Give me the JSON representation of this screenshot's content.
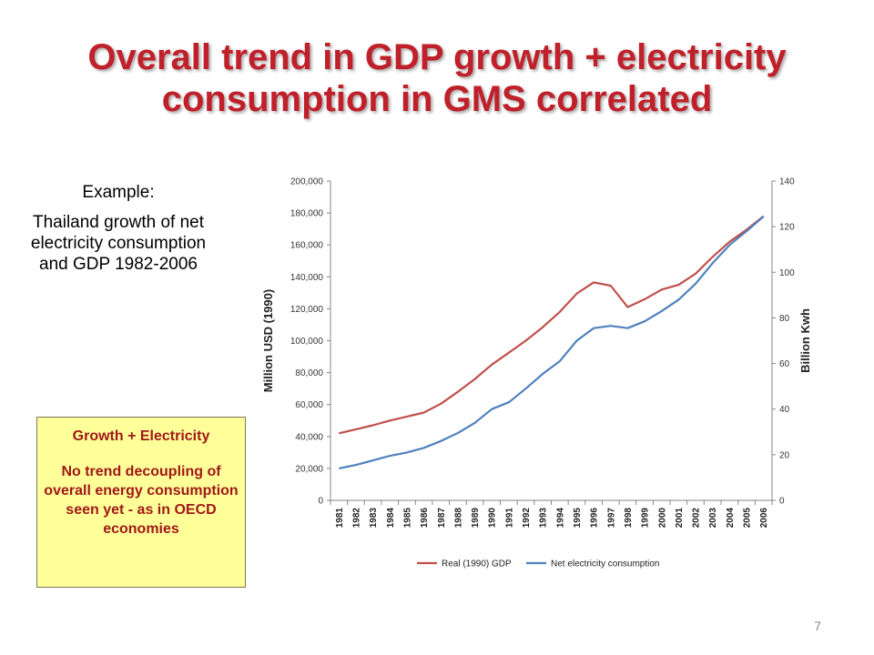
{
  "title": {
    "line1": "Overall trend in GDP growth + electricity",
    "line2": "consumption in GMS correlated"
  },
  "left_text": {
    "example": "Example:",
    "body": "Thailand growth of net electricity consumption and GDP 1982-2006"
  },
  "box": {
    "heading": "Growth + Electricity",
    "body": "No trend decoupling of overall energy consumption seen yet - as in OECD economies"
  },
  "page_number": "7",
  "colors": {
    "title": "#C0202A",
    "box_bg": "#FFFF99",
    "box_text": "#A01818",
    "gdp_line": "#C0504D",
    "elec_line": "#4F81BD"
  },
  "chart_data": {
    "type": "line",
    "ylabel": "Million USD (1990)",
    "y2label": "Billion Kwh",
    "ylim": [
      0,
      200000
    ],
    "y2lim": [
      0,
      140
    ],
    "y_ticks": [
      "0",
      "20,000",
      "40,000",
      "60,000",
      "80,000",
      "100,000",
      "120,000",
      "140,000",
      "160,000",
      "180,000",
      "200,000"
    ],
    "y2_ticks": [
      "0",
      "20",
      "40",
      "60",
      "80",
      "100",
      "120",
      "140"
    ],
    "grid": true,
    "legend_position": "bottom",
    "x": [
      "1981",
      "1982",
      "1983",
      "1984",
      "1985",
      "1986",
      "1987",
      "1988",
      "1989",
      "1990",
      "1991",
      "1992",
      "1993",
      "1994",
      "1995",
      "1996",
      "1997",
      "1998",
      "1999",
      "2000",
      "2001",
      "2002",
      "2003",
      "2004",
      "2005",
      "2006"
    ],
    "series": [
      {
        "name": "Real (1990) GDP",
        "axis": "left",
        "color": "#C0504D",
        "values": [
          42000,
          44500,
          47000,
          50000,
          52500,
          55000,
          60500,
          68000,
          76000,
          85000,
          92500,
          100000,
          108500,
          118000,
          129500,
          136500,
          134500,
          121000,
          126000,
          132000,
          135000,
          142000,
          152500,
          162000,
          169500,
          178000
        ]
      },
      {
        "name": "Net electricity consumption",
        "axis": "right",
        "color": "#4F81BD",
        "values": [
          14,
          15.5,
          17.5,
          19.5,
          21,
          23,
          26,
          29.5,
          34,
          40,
          43,
          49,
          55.5,
          61,
          70,
          75.5,
          76.5,
          75.5,
          78.5,
          83,
          88,
          95,
          104,
          112,
          118,
          124.5
        ]
      }
    ]
  }
}
